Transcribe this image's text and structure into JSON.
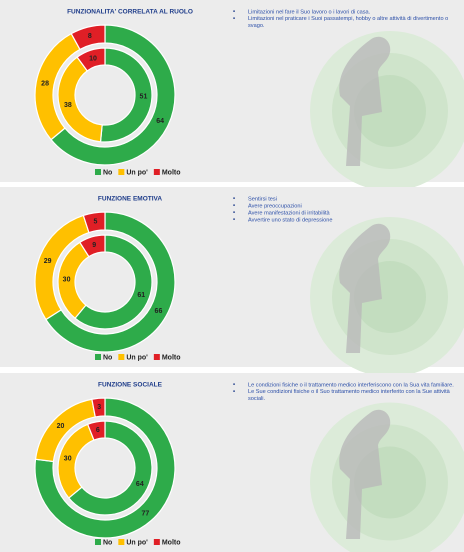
{
  "chart_data": [
    {
      "type": "donut",
      "title": "FUNZIONALITA' CORRELATA AL RUOLO",
      "categories": [
        "No",
        "Un po'",
        "Molto"
      ],
      "colors": [
        "#2eab4a",
        "#ffc000",
        "#e01f26"
      ],
      "series": [
        {
          "values": [
            51,
            38,
            10
          ]
        },
        {
          "values": [
            64,
            28,
            8
          ]
        }
      ],
      "bullets": [
        "Limitazioni nel fare il Suo lavoro o i lavori di casa.",
        "Limitazioni nel praticare i Suoi passatempi, hobby o altre attività di divertimento o svago."
      ]
    },
    {
      "type": "donut",
      "title": "FUNZIONE EMOTIVA",
      "categories": [
        "No",
        "Un po'",
        "Molto"
      ],
      "colors": [
        "#2eab4a",
        "#ffc000",
        "#e01f26"
      ],
      "series": [
        {
          "values": [
            61,
            30,
            9
          ]
        },
        {
          "values": [
            66,
            29,
            5
          ]
        }
      ],
      "bullets": [
        "Sentirsi tesi",
        "Avere preoccupazioni",
        "Avere manifestazioni di irritabilità",
        "Avvertire uno stato di depressione"
      ]
    },
    {
      "type": "donut",
      "title": "FUNZIONE SOCIALE",
      "categories": [
        "No",
        "Un po'",
        "Molto"
      ],
      "colors": [
        "#2eab4a",
        "#ffc000",
        "#e01f26"
      ],
      "series": [
        {
          "values": [
            64,
            30,
            6
          ]
        },
        {
          "values": [
            77,
            20,
            3
          ]
        }
      ],
      "bullets": [
        "Le condizioni fisiche o il trattamento medico interferiscono con la Sua vita familiare.",
        "Le Sue condizioni fisiche o il Suo trattamento medico interferito con la Sue attività sociali."
      ]
    }
  ]
}
